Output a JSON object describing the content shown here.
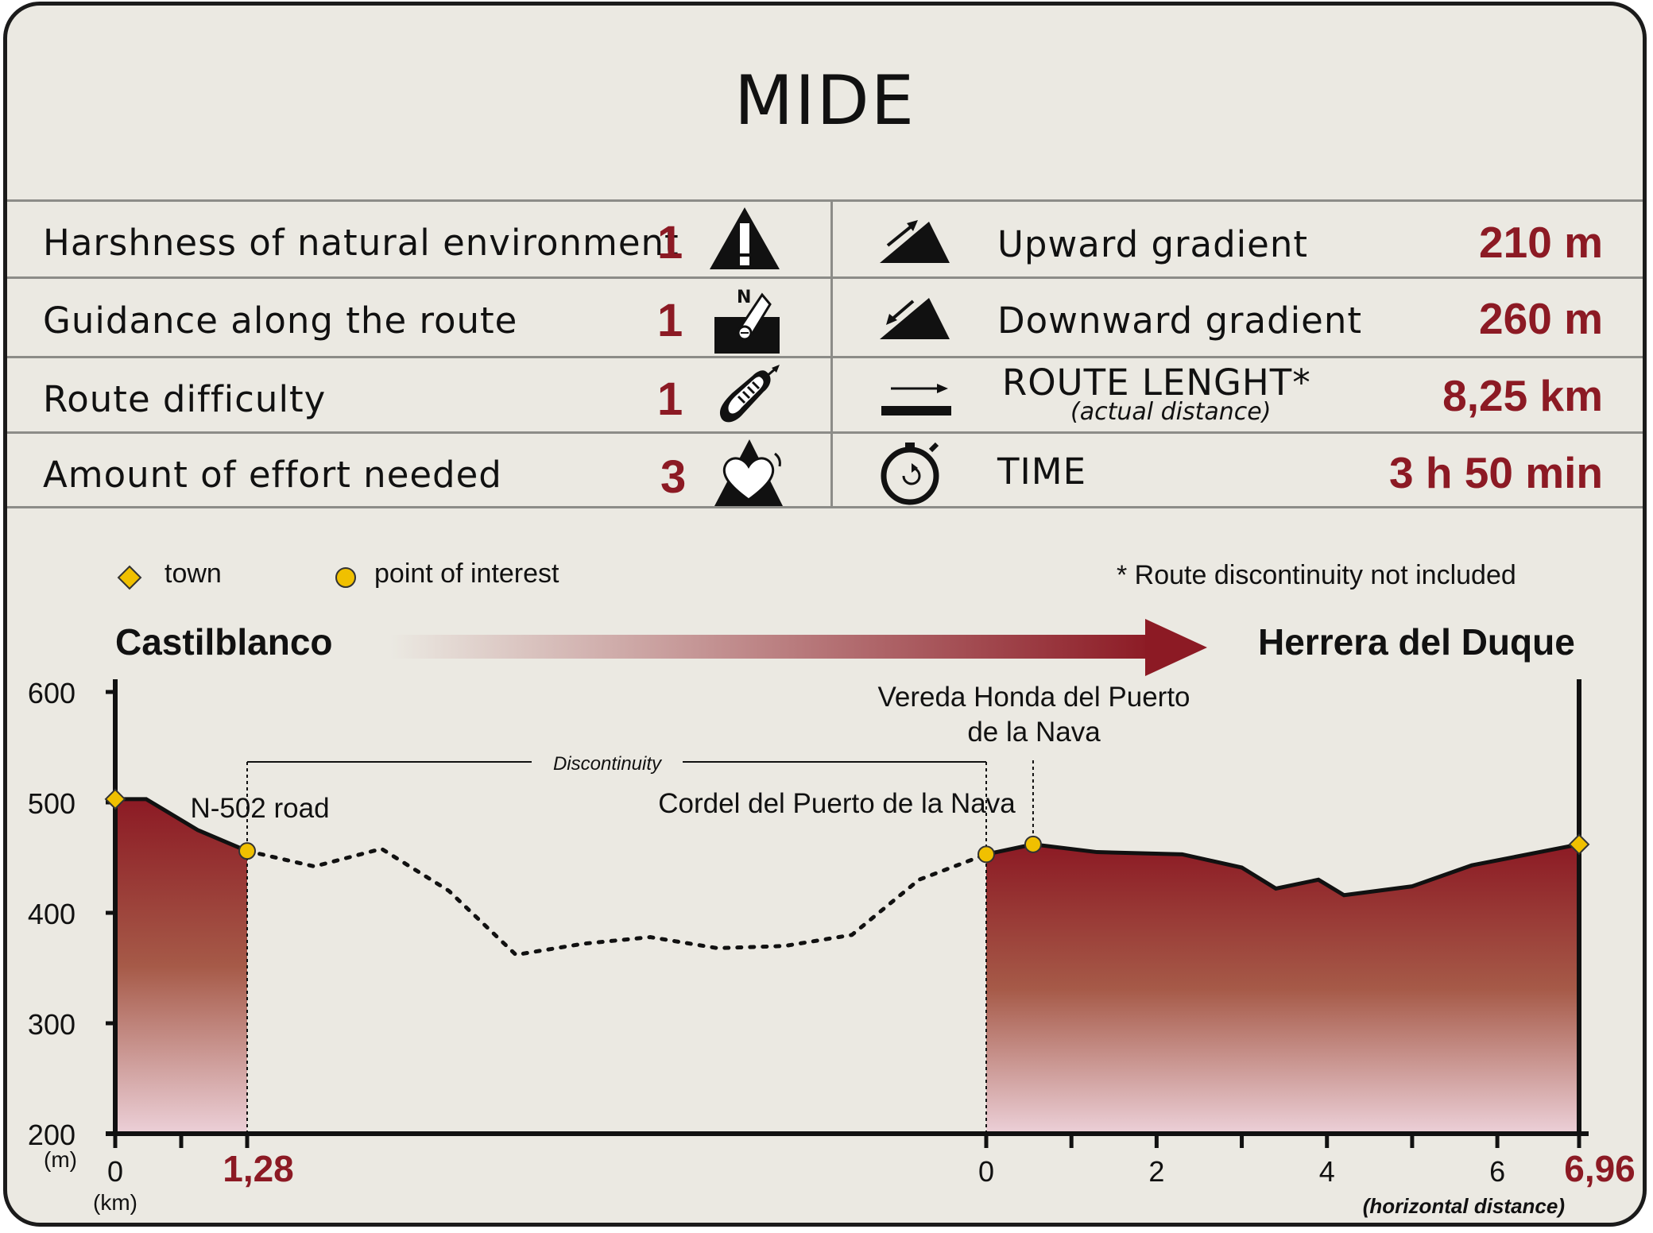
{
  "title": "MIDE",
  "mide_rows": [
    {
      "label": "Harshness of natural environment",
      "score": "1",
      "icon": "warning-triangle-icon"
    },
    {
      "label": "Guidance along the route",
      "score": "1",
      "icon": "compass-orientation-icon"
    },
    {
      "label": "Route difficulty",
      "score": "1",
      "icon": "footprint-icon"
    },
    {
      "label": "Amount of effort needed",
      "score": "3",
      "icon": "heart-mountain-icon"
    }
  ],
  "stats": {
    "upward": {
      "label": "Upward gradient",
      "value": "210 m",
      "icon": "upward-slope-icon"
    },
    "downward": {
      "label": "Downward gradient",
      "value": "260 m",
      "icon": "downward-slope-icon"
    },
    "length": {
      "label": "ROUTE LENGHT*",
      "sublabel": "(actual distance)",
      "value": "8,25 km",
      "icon": "distance-arrow-icon"
    },
    "time": {
      "label": "TIME",
      "value": "3 h 50 min",
      "icon": "stopwatch-icon"
    }
  },
  "legend": {
    "town": "town",
    "poi": "point of interest",
    "note": "* Route discontinuity not included"
  },
  "route": {
    "start": "Castilblanco",
    "end": "Herrera del Duque"
  },
  "colors": {
    "accent": "#8c1a24",
    "background": "#ebe9e2",
    "town_marker": "#f0c000",
    "poi_marker": "#f0c000"
  },
  "chart_data": {
    "type": "area",
    "ylabel": "(m)",
    "xlabel": "(km)",
    "ylim": [
      200,
      600
    ],
    "yticks": [
      "600",
      "500",
      "400",
      "300",
      "200"
    ],
    "x_axis_note": "(horizontal distance)",
    "segments": [
      {
        "name": "Castilblanco – N-502 road",
        "x": [
          0,
          0.3,
          0.8,
          1.28
        ],
        "y": [
          503,
          503,
          475,
          456
        ],
        "x_ticks": [
          "0"
        ],
        "end_label": "1,28"
      },
      {
        "name": "Discontinuity",
        "style": "dotted",
        "y": [
          456,
          442,
          458,
          420,
          362,
          372,
          378,
          368,
          370,
          380,
          430,
          453
        ]
      },
      {
        "name": "Cordel del Puerto de la Nava – Herrera del Duque",
        "x": [
          0,
          0.55,
          1.3,
          2.3,
          3.0,
          3.4,
          3.9,
          4.2,
          5.0,
          5.7,
          6.96
        ],
        "y": [
          453,
          462,
          455,
          453,
          441,
          422,
          430,
          416,
          424,
          443,
          462
        ],
        "x_ticks": [
          "0",
          "2",
          "4",
          "6"
        ],
        "end_label": "6,96"
      }
    ],
    "markers": [
      {
        "type": "town",
        "label": "",
        "segment": 0,
        "x": 0,
        "y": 503
      },
      {
        "type": "poi",
        "label": "N-502 road",
        "segment": 0,
        "x": 1.28,
        "y": 456
      },
      {
        "type": "poi",
        "label": "Cordel del Puerto de la Nava",
        "segment": 2,
        "x": 0,
        "y": 453
      },
      {
        "type": "poi",
        "label": "Vereda Honda del Puerto de la Nava",
        "segment": 2,
        "x": 0.55,
        "y": 462
      },
      {
        "type": "town",
        "label": "",
        "segment": 2,
        "x": 6.96,
        "y": 462
      }
    ],
    "discontinuity_label": "Discontinuity",
    "vereda_line1": "Vereda Honda del Puerto",
    "vereda_line2": "de la Nava"
  }
}
